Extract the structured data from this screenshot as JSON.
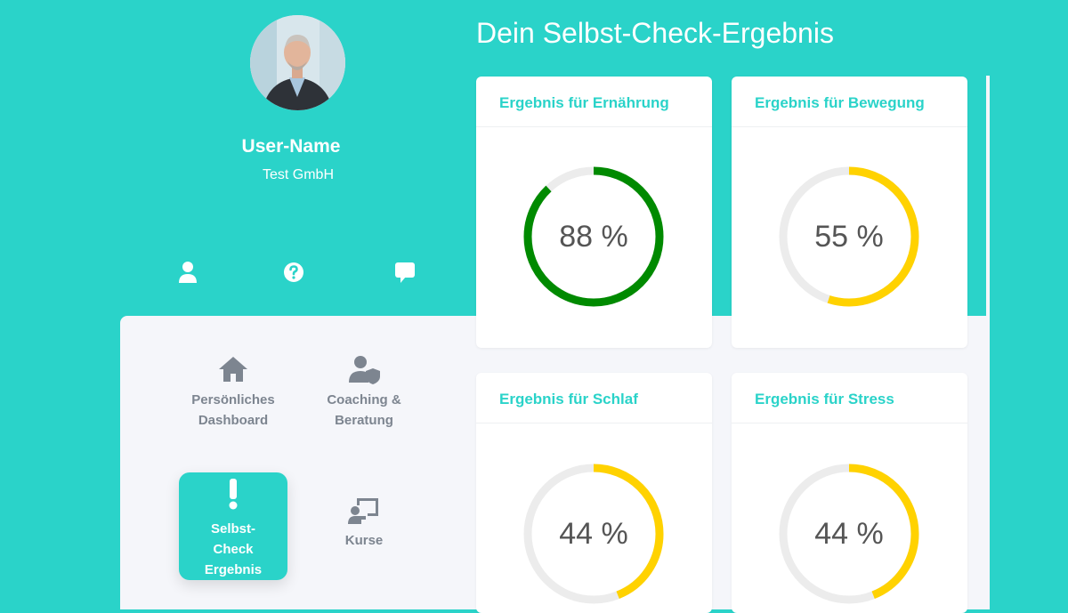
{
  "profile": {
    "name": "User-Name",
    "company": "Test GmbH"
  },
  "top_icons": [
    "user-icon",
    "question-circle-icon",
    "comment-icon"
  ],
  "nav": [
    {
      "label_line1": "Persönliches",
      "label_line2": "Dashboard",
      "icon": "home-icon"
    },
    {
      "label_line1": "Coaching &",
      "label_line2": "Beratung",
      "icon": "user-shield-icon"
    },
    {
      "label_line1": "Selbst-",
      "label_line2": "Check",
      "label_line3": "Ergebnis",
      "icon": "exclamation-icon",
      "active": true
    },
    {
      "label_line1": "Kurse",
      "icon": "chalkboard-teacher-icon"
    }
  ],
  "main": {
    "title": "Dein Selbst-Check-Ergebnis"
  },
  "results": [
    {
      "title": "Ergebnis für Ernährung",
      "value": 88,
      "display": "88 %",
      "color": "#008a00"
    },
    {
      "title": "Ergebnis für Bewegung",
      "value": 55,
      "display": "55 %",
      "color": "#ffd200"
    },
    {
      "title": "Ergebnis für Schlaf",
      "value": 44,
      "display": "44 %",
      "color": "#ffd200"
    },
    {
      "title": "Ergebnis für Stress",
      "value": 44,
      "display": "44 %",
      "color": "#ffd200"
    }
  ],
  "colors": {
    "teal": "#2ad3c9",
    "panel": "#f5f6fa",
    "track": "#ececec",
    "muted": "#7d8590"
  }
}
